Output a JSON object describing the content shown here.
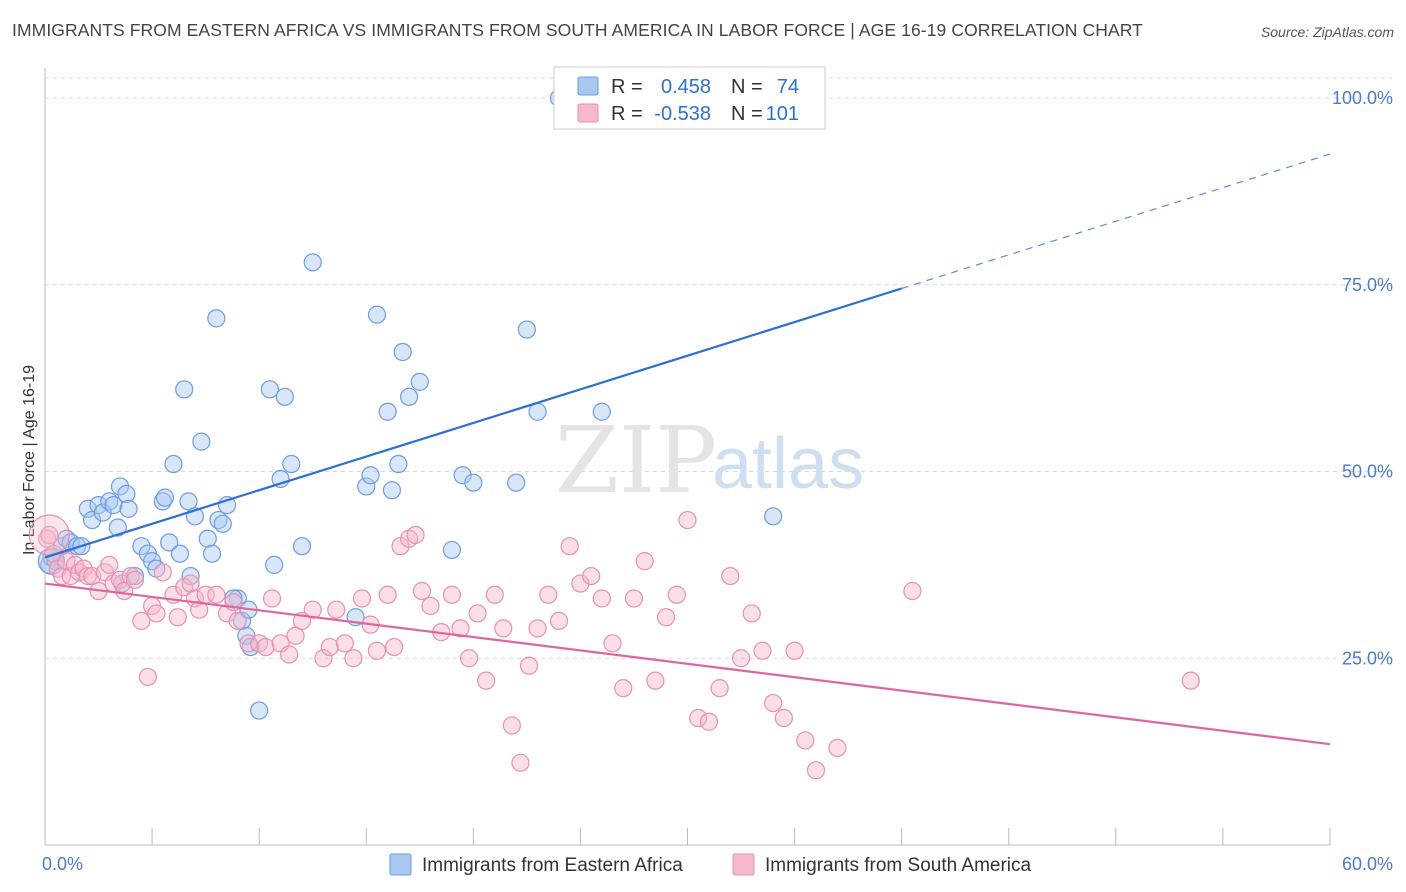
{
  "title": "IMMIGRANTS FROM EASTERN AFRICA VS IMMIGRANTS FROM SOUTH AMERICA IN LABOR FORCE | AGE 16-19 CORRELATION CHART",
  "source": "Source: ZipAtlas.com",
  "watermark": {
    "zip": "ZIP",
    "atlas": "atlas"
  },
  "colors": {
    "blue_fill": "#a9c8f0",
    "blue_stroke": "#6d9de0",
    "blue_line": "#2f6fd1",
    "pink_fill": "#f5b8cc",
    "pink_stroke": "#e890b0",
    "pink_line": "#e0669a",
    "grid": "#d8d8d8",
    "tick_text": "#4a7cc7"
  },
  "legend": {
    "rows": [
      {
        "r_label": "R =",
        "r_value": "0.458",
        "n_label": "N =",
        "n_value": "74"
      },
      {
        "r_label": "R =",
        "r_value": "-0.538",
        "n_label": "N =",
        "n_value": "101"
      }
    ]
  },
  "chart_data": {
    "type": "scatter",
    "ylabel": "In Labor Force | Age 16-19",
    "xlabel": "",
    "xlim": [
      0,
      60
    ],
    "ylim": [
      0,
      100
    ],
    "y_ticks": [
      {
        "value": 25,
        "label": "25.0%"
      },
      {
        "value": 50,
        "label": "50.0%"
      },
      {
        "value": 75,
        "label": "75.0%"
      },
      {
        "value": 100,
        "label": "100.0%"
      }
    ],
    "x_ticks": [
      {
        "value": 0,
        "label": "0.0%"
      },
      {
        "value": 60,
        "label": "60.0%"
      }
    ],
    "legend_position": "top-center",
    "series": [
      {
        "name": "Immigrants from Eastern Africa",
        "color": "blue",
        "trend": {
          "x": [
            0,
            40,
            60
          ],
          "y": [
            38.5,
            74.5,
            92.5
          ],
          "solid_until": 40
        },
        "points": [
          [
            0.2,
            37.5
          ],
          [
            0.3,
            38.5
          ],
          [
            0.5,
            38
          ],
          [
            0.8,
            40
          ],
          [
            1,
            41
          ],
          [
            1.2,
            40.5
          ],
          [
            1.5,
            40
          ],
          [
            1.7,
            40
          ],
          [
            2,
            45
          ],
          [
            2.2,
            43.5
          ],
          [
            2.5,
            45.5
          ],
          [
            2.7,
            44.5
          ],
          [
            3,
            46
          ],
          [
            3.2,
            45.5
          ],
          [
            3.4,
            42.5
          ],
          [
            3.5,
            48
          ],
          [
            3.8,
            47
          ],
          [
            3.9,
            45
          ],
          [
            4.5,
            40
          ],
          [
            4.8,
            39
          ],
          [
            5,
            38
          ],
          [
            5.2,
            37
          ],
          [
            5.5,
            46
          ],
          [
            5.6,
            46.5
          ],
          [
            5.8,
            40.5
          ],
          [
            6,
            51
          ],
          [
            6.3,
            39
          ],
          [
            6.5,
            61
          ],
          [
            6.7,
            46
          ],
          [
            7,
            44
          ],
          [
            7.3,
            54
          ],
          [
            7.6,
            41
          ],
          [
            7.8,
            39
          ],
          [
            8,
            70.5
          ],
          [
            8.1,
            43.5
          ],
          [
            8.3,
            43
          ],
          [
            8.5,
            45.5
          ],
          [
            9,
            33
          ],
          [
            9.2,
            30
          ],
          [
            9.4,
            28
          ],
          [
            9.5,
            31.5
          ],
          [
            9.6,
            26.5
          ],
          [
            10,
            18
          ],
          [
            10.5,
            61
          ],
          [
            10.7,
            37.5
          ],
          [
            11,
            49
          ],
          [
            11.2,
            60
          ],
          [
            11.5,
            51
          ],
          [
            12,
            40
          ],
          [
            12.5,
            78
          ],
          [
            14.5,
            30.5
          ],
          [
            15,
            48
          ],
          [
            15.2,
            49.5
          ],
          [
            15.5,
            71
          ],
          [
            16,
            58
          ],
          [
            16.2,
            47.5
          ],
          [
            16.5,
            51
          ],
          [
            16.7,
            66
          ],
          [
            17,
            60
          ],
          [
            17.5,
            62
          ],
          [
            19,
            39.5
          ],
          [
            19.5,
            49.5
          ],
          [
            20,
            48.5
          ],
          [
            22,
            48.5
          ],
          [
            22.5,
            69
          ],
          [
            23,
            58
          ],
          [
            24,
            100
          ],
          [
            24.5,
            100
          ],
          [
            26,
            58
          ],
          [
            34,
            44
          ],
          [
            3.6,
            35
          ],
          [
            4.2,
            36
          ],
          [
            6.8,
            36
          ],
          [
            8.8,
            33
          ]
        ]
      },
      {
        "name": "Immigrants from South America",
        "color": "pink",
        "trend": {
          "x": [
            0,
            60
          ],
          "y": [
            35,
            13.5
          ]
        },
        "points": [
          [
            0.1,
            41
          ],
          [
            0.2,
            41.5
          ],
          [
            0.4,
            39
          ],
          [
            0.6,
            37
          ],
          [
            0.8,
            36
          ],
          [
            1,
            38
          ],
          [
            1.2,
            36
          ],
          [
            1.4,
            37.5
          ],
          [
            1.6,
            36.5
          ],
          [
            1.8,
            37
          ],
          [
            2,
            36
          ],
          [
            2.2,
            36
          ],
          [
            2.5,
            34
          ],
          [
            2.8,
            36.5
          ],
          [
            3,
            37.5
          ],
          [
            3.2,
            35
          ],
          [
            3.5,
            35.5
          ],
          [
            3.7,
            34
          ],
          [
            4,
            36
          ],
          [
            4.2,
            35.5
          ],
          [
            4.5,
            30
          ],
          [
            4.8,
            22.5
          ],
          [
            5,
            32
          ],
          [
            5.2,
            31
          ],
          [
            5.5,
            36.5
          ],
          [
            6,
            33.5
          ],
          [
            6.2,
            30.5
          ],
          [
            6.5,
            34.5
          ],
          [
            6.8,
            35
          ],
          [
            7,
            33
          ],
          [
            7.2,
            31.5
          ],
          [
            7.5,
            33.5
          ],
          [
            8,
            33.5
          ],
          [
            8.5,
            31
          ],
          [
            8.8,
            32.5
          ],
          [
            9,
            30
          ],
          [
            9.5,
            27
          ],
          [
            10,
            27
          ],
          [
            10.3,
            26.5
          ],
          [
            10.6,
            33
          ],
          [
            11,
            27
          ],
          [
            11.4,
            25.5
          ],
          [
            11.7,
            28
          ],
          [
            12,
            30
          ],
          [
            12.5,
            31.5
          ],
          [
            13,
            25
          ],
          [
            13.3,
            26.5
          ],
          [
            13.6,
            31.5
          ],
          [
            14,
            27
          ],
          [
            14.4,
            25
          ],
          [
            14.8,
            33
          ],
          [
            15.2,
            29.5
          ],
          [
            15.5,
            26
          ],
          [
            16,
            33.5
          ],
          [
            16.3,
            26.5
          ],
          [
            16.6,
            40
          ],
          [
            17,
            41
          ],
          [
            17.3,
            41.5
          ],
          [
            17.6,
            34
          ],
          [
            18,
            32
          ],
          [
            18.5,
            28.5
          ],
          [
            19,
            33.5
          ],
          [
            19.4,
            29
          ],
          [
            19.8,
            25
          ],
          [
            20.2,
            31
          ],
          [
            20.6,
            22
          ],
          [
            21,
            33.5
          ],
          [
            21.4,
            29
          ],
          [
            21.8,
            16
          ],
          [
            22.2,
            11
          ],
          [
            22.6,
            24
          ],
          [
            23,
            29
          ],
          [
            23.5,
            33.5
          ],
          [
            24,
            30
          ],
          [
            24.5,
            40
          ],
          [
            25,
            35
          ],
          [
            25.5,
            36
          ],
          [
            26,
            33
          ],
          [
            26.5,
            27
          ],
          [
            27,
            21
          ],
          [
            27.5,
            33
          ],
          [
            28,
            38
          ],
          [
            28.5,
            22
          ],
          [
            29,
            30.5
          ],
          [
            29.5,
            33.5
          ],
          [
            30,
            43.5
          ],
          [
            30.5,
            17
          ],
          [
            31,
            16.5
          ],
          [
            31.5,
            21
          ],
          [
            32,
            36
          ],
          [
            32.5,
            25
          ],
          [
            33,
            31
          ],
          [
            33.5,
            26
          ],
          [
            34,
            19
          ],
          [
            34.5,
            17
          ],
          [
            35,
            26
          ],
          [
            35.5,
            14
          ],
          [
            36,
            10
          ],
          [
            37,
            13
          ],
          [
            40.5,
            34
          ],
          [
            53.5,
            22
          ]
        ]
      }
    ]
  },
  "bottom_legend": [
    {
      "label": "Immigrants from Eastern Africa"
    },
    {
      "label": "Immigrants from South America"
    }
  ]
}
